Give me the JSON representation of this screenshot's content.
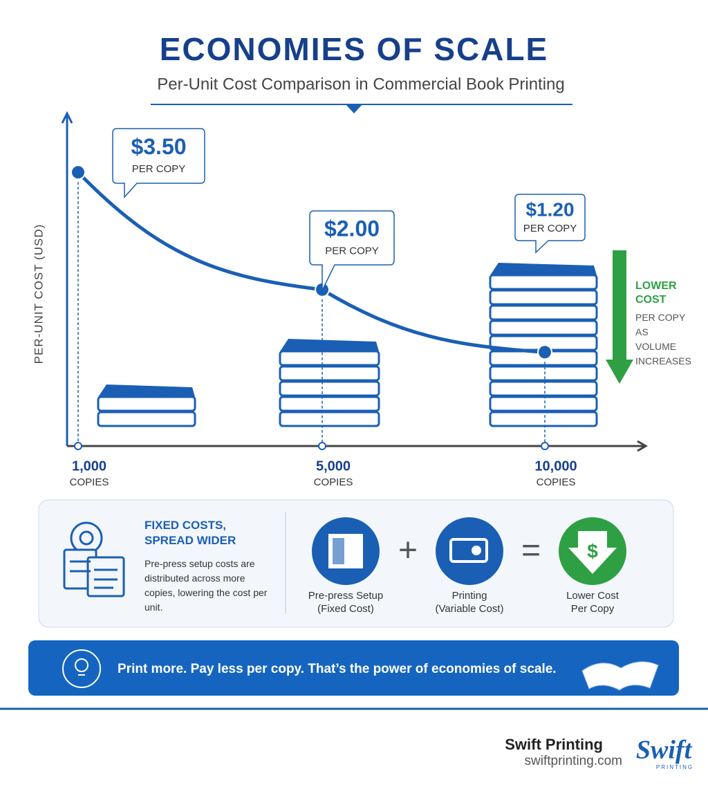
{
  "chart_data": {
    "type": "line",
    "title": "ECONOMIES OF SCALE",
    "subtitle": "Per-Unit Cost Comparison in Commercial Book Printing",
    "y_label": "PER-UNIT COST (USD)",
    "categories": [
      "1,000",
      "5,000",
      "10,000"
    ],
    "category_unit": "COPIES",
    "values": [
      3.5,
      2.0,
      1.2
    ],
    "value_labels": [
      "$3.50",
      "$2.00",
      "$1.20"
    ],
    "value_label_unit": "PER COPY",
    "ylim": [
      0,
      4.2
    ],
    "color": "#1a5fb4",
    "annotation": {
      "title": "LOWER COST",
      "text": "PER COPY AS VOLUME INCREASES"
    }
  },
  "fixed_costs": {
    "title": "FIXED COSTS, SPREAD WIDER",
    "text": "Pre-press setup costs are distributed across more copies, lowering the cost per unit."
  },
  "equation": {
    "items": [
      {
        "label": "Pre-press Setup",
        "sub": "(Fixed Cost)"
      },
      {
        "label": "Printing",
        "sub": "(Variable Cost)"
      },
      {
        "label": "Lower Cost",
        "sub": "Per Copy"
      }
    ],
    "plus": "+",
    "equals": "=",
    "symbol": "$"
  },
  "banner": {
    "text": "Print more. Pay less per copy. That’s the power of economies of scale."
  },
  "footer": {
    "brand": "Swift Printing",
    "url": "swiftprinting.com",
    "logo": "Swift",
    "logo_sub": "PRINTING"
  }
}
